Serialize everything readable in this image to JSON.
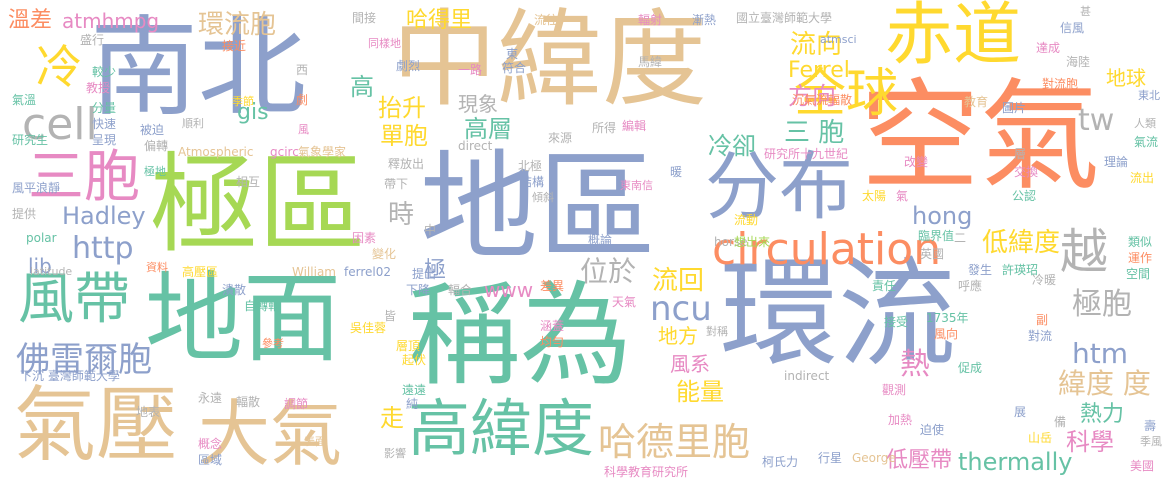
{
  "cloud": {
    "palette": {
      "green": "#66c2a5",
      "orange": "#fc8d62",
      "blue": "#8da0cb",
      "pink": "#e78ac3",
      "lime": "#a6d854",
      "yellow": "#ffd92f",
      "tan": "#e5c494",
      "gray": "#b3b3b3"
    },
    "words": [
      {
        "text": "環流",
        "color": "#8da0cb"
      },
      {
        "text": "地區",
        "color": "#8da0cb"
      },
      {
        "text": "空氣",
        "color": "#fc8d62"
      },
      {
        "text": "中緯度",
        "color": "#e5c494"
      },
      {
        "text": "南北",
        "color": "#8da0cb"
      },
      {
        "text": "地面",
        "color": "#66c2a5"
      },
      {
        "text": "稱為",
        "color": "#66c2a5"
      },
      {
        "text": "極區",
        "color": "#a6d854"
      },
      {
        "text": "赤道",
        "color": "#ffd92f"
      },
      {
        "text": "氣壓",
        "color": "#e5c494"
      },
      {
        "text": "大氣",
        "color": "#e5c494"
      },
      {
        "text": "分布",
        "color": "#8da0cb"
      },
      {
        "text": "高緯度",
        "color": "#66c2a5"
      },
      {
        "text": "circulation",
        "color": "#fc8d62"
      },
      {
        "text": "風帶",
        "color": "#66c2a5"
      },
      {
        "text": "全球",
        "color": "#ffd92f"
      },
      {
        "text": "三胞",
        "color": "#e78ac3"
      },
      {
        "text": "哈德里胞",
        "color": "#e5c494"
      },
      {
        "text": "越",
        "color": "#b3b3b3"
      },
      {
        "text": "冷",
        "color": "#ffd92f"
      },
      {
        "text": "cell",
        "color": "#b3b3b3"
      },
      {
        "text": "佛雷爾胞",
        "color": "#8da0cb"
      },
      {
        "text": "http",
        "color": "#8da0cb"
      },
      {
        "text": "ncu",
        "color": "#8da0cb"
      },
      {
        "text": "Hadley",
        "color": "#8da0cb"
      },
      {
        "text": "環流胞",
        "color": "#e5c494"
      },
      {
        "text": "哈得里",
        "color": "#ffd92f"
      },
      {
        "text": "流向",
        "color": "#ffd92f"
      },
      {
        "text": "Ferrel",
        "color": "#ffd92f"
      },
      {
        "text": "方向",
        "color": "#e78ac3"
      },
      {
        "text": "tw",
        "color": "#b3b3b3"
      },
      {
        "text": "地球",
        "color": "#ffd92f"
      },
      {
        "text": "三 胞",
        "color": "#66c2a5"
      },
      {
        "text": "高層",
        "color": "#66c2a5"
      },
      {
        "text": "抬升",
        "color": "#ffd92f"
      },
      {
        "text": "單胞",
        "color": "#ffd92f"
      },
      {
        "text": "冷卻",
        "color": "#66c2a5"
      },
      {
        "text": "低緯度",
        "color": "#ffd92f"
      },
      {
        "text": "hong",
        "color": "#8da0cb"
      },
      {
        "text": "極胞",
        "color": "#b3b3b3"
      },
      {
        "text": "htm",
        "color": "#8da0cb"
      },
      {
        "text": "緯度 度",
        "color": "#e5c494"
      },
      {
        "text": "熱力",
        "color": "#66c2a5"
      },
      {
        "text": "科學",
        "color": "#e78ac3"
      },
      {
        "text": "thermally",
        "color": "#66c2a5"
      },
      {
        "text": "低壓帶",
        "color": "#e78ac3"
      },
      {
        "text": "能量",
        "color": "#ffd92f"
      },
      {
        "text": "風系",
        "color": "#e78ac3"
      },
      {
        "text": "熱",
        "color": "#e78ac3"
      },
      {
        "text": "流回",
        "color": "#ffd92f"
      },
      {
        "text": "位於",
        "color": "#b3b3b3"
      },
      {
        "text": "www",
        "color": "#e78ac3"
      },
      {
        "text": "地方",
        "color": "#ffd92f"
      },
      {
        "text": "時",
        "color": "#b3b3b3"
      },
      {
        "text": "高",
        "color": "#66c2a5"
      },
      {
        "text": "gis",
        "color": "#66c2a5"
      },
      {
        "text": "lib",
        "color": "#8da0cb"
      },
      {
        "text": "溫差",
        "color": "#fc8d62"
      },
      {
        "text": "atmhmpg",
        "color": "#e78ac3"
      },
      {
        "text": "現象",
        "color": "#b3b3b3"
      },
      {
        "text": "走",
        "color": "#ffd92f"
      },
      {
        "text": "極",
        "color": "#8da0cb"
      },
      {
        "text": "Atmospheric",
        "color": "#e5c494"
      },
      {
        "text": "gcirc",
        "color": "#e78ac3"
      },
      {
        "text": "研究所十九世紀",
        "color": "#e78ac3"
      },
      {
        "text": "沉氣流輻散",
        "color": "#fc8d62"
      },
      {
        "text": "科學教育研究所",
        "color": "#e78ac3"
      },
      {
        "text": "下沉 臺灣師範大學",
        "color": "#8da0cb"
      },
      {
        "text": "國立臺灣師範大學",
        "color": "#b3b3b3"
      },
      {
        "text": "William",
        "color": "#e5c494"
      },
      {
        "text": "ferrel02",
        "color": "#8da0cb"
      },
      {
        "text": "indirect",
        "color": "#b3b3b3"
      },
      {
        "text": "George",
        "color": "#e5c494"
      },
      {
        "text": "direct",
        "color": "#b3b3b3"
      },
      {
        "text": "horse",
        "color": "#b3b3b3"
      },
      {
        "text": "polar",
        "color": "#66c2a5"
      },
      {
        "text": "latitude",
        "color": "#b3b3b3"
      },
      {
        "text": "atmsci",
        "color": "#8da0cb"
      },
      {
        "text": "1735年",
        "color": "#66c2a5"
      },
      {
        "text": "許瑛玿",
        "color": "#66c2a5"
      },
      {
        "text": "吳佳蓉",
        "color": "#ffd92f"
      },
      {
        "text": "柯氏力",
        "color": "#8da0cb"
      },
      {
        "text": "東南信",
        "color": "#e78ac3"
      },
      {
        "text": "想出來",
        "color": "#a6d854"
      },
      {
        "text": "太陽",
        "color": "#ffd92f"
      },
      {
        "text": "氣",
        "color": "#e78ac3"
      },
      {
        "text": "公認",
        "color": "#66c2a5"
      },
      {
        "text": "臨界值",
        "color": "#66c2a5"
      },
      {
        "text": "運作",
        "color": "#fc8d62"
      },
      {
        "text": "空間",
        "color": "#66c2a5"
      },
      {
        "text": "類似",
        "color": "#66c2a5"
      },
      {
        "text": "發生",
        "color": "#8da0cb"
      },
      {
        "text": "英國",
        "color": "#b3b3b3"
      },
      {
        "text": "二",
        "color": "#b3b3b3"
      },
      {
        "text": "呼應",
        "color": "#b3b3b3"
      },
      {
        "text": "冷暖",
        "color": "#b3b3b3"
      },
      {
        "text": "責任",
        "color": "#66c2a5"
      },
      {
        "text": "接受",
        "color": "#66c2a5"
      },
      {
        "text": "風向",
        "color": "#fc8d62"
      },
      {
        "text": "對流",
        "color": "#8da0cb"
      },
      {
        "text": "副",
        "color": "#fc8d62"
      },
      {
        "text": "促成",
        "color": "#66c2a5"
      },
      {
        "text": "觀測",
        "color": "#e78ac3"
      },
      {
        "text": "加熱",
        "color": "#e78ac3"
      },
      {
        "text": "迫使",
        "color": "#8da0cb"
      },
      {
        "text": "行星",
        "color": "#8da0cb"
      },
      {
        "text": "山岳",
        "color": "#ffd92f"
      },
      {
        "text": "展",
        "color": "#8da0cb"
      },
      {
        "text": "季風",
        "color": "#b3b3b3"
      },
      {
        "text": "美國",
        "color": "#e78ac3"
      },
      {
        "text": "壽",
        "color": "#8da0cb"
      },
      {
        "text": "備",
        "color": "#b3b3b3"
      },
      {
        "text": "漸熱",
        "color": "#8da0cb"
      },
      {
        "text": "輻射",
        "color": "#e78ac3"
      },
      {
        "text": "信風",
        "color": "#8da0cb"
      },
      {
        "text": "達成",
        "color": "#e78ac3"
      },
      {
        "text": "對流胞",
        "color": "#fc8d62"
      },
      {
        "text": "東北",
        "color": "#8da0cb"
      },
      {
        "text": "人類",
        "color": "#b3b3b3"
      },
      {
        "text": "氣流",
        "color": "#66c2a5"
      },
      {
        "text": "理論",
        "color": "#8da0cb"
      },
      {
        "text": "流出",
        "color": "#ffd92f"
      },
      {
        "text": "交換",
        "color": "#e78ac3"
      },
      {
        "text": "圖片",
        "color": "#8da0cb"
      },
      {
        "text": "教育",
        "color": "#e5c494"
      },
      {
        "text": "改變",
        "color": "#e78ac3"
      },
      {
        "text": "層",
        "color": "#b3b3b3"
      },
      {
        "text": "甚",
        "color": "#b3b3b3"
      },
      {
        "text": "海陸",
        "color": "#b3b3b3"
      },
      {
        "text": "流往",
        "color": "#e5c494"
      },
      {
        "text": "東",
        "color": "#8da0cb"
      },
      {
        "text": "符合",
        "color": "#8da0cb"
      },
      {
        "text": "一路",
        "color": "#e78ac3"
      },
      {
        "text": "馬緯",
        "color": "#b3b3b3"
      },
      {
        "text": "間接",
        "color": "#b3b3b3"
      },
      {
        "text": "同樣地",
        "color": "#e78ac3"
      },
      {
        "text": "西",
        "color": "#b3b3b3"
      },
      {
        "text": "劇烈",
        "color": "#8da0cb"
      },
      {
        "text": "季節",
        "color": "#ffd92f"
      },
      {
        "text": "劇",
        "color": "#fc8d62"
      },
      {
        "text": "風",
        "color": "#e78ac3"
      },
      {
        "text": "接近",
        "color": "#fc8d62"
      },
      {
        "text": "較少",
        "color": "#66c2a5"
      },
      {
        "text": "盛行",
        "color": "#b3b3b3"
      },
      {
        "text": "教授",
        "color": "#e78ac3"
      },
      {
        "text": "氣溫",
        "color": "#66c2a5"
      },
      {
        "text": "分量",
        "color": "#66c2a5"
      },
      {
        "text": "快速",
        "color": "#8da0cb"
      },
      {
        "text": "被迫",
        "color": "#8da0cb"
      },
      {
        "text": "順利",
        "color": "#b3b3b3"
      },
      {
        "text": "呈現",
        "color": "#8da0cb"
      },
      {
        "text": "研究生",
        "color": "#66c2a5"
      },
      {
        "text": "偏轉",
        "color": "#b3b3b3"
      },
      {
        "text": "氣象學家",
        "color": "#e5c494"
      },
      {
        "text": "極地",
        "color": "#66c2a5"
      },
      {
        "text": "風平浪靜",
        "color": "#8da0cb"
      },
      {
        "text": "提供",
        "color": "#b3b3b3"
      },
      {
        "text": "相互",
        "color": "#b3b3b3"
      },
      {
        "text": "釋放出",
        "color": "#b3b3b3"
      },
      {
        "text": "帶下",
        "color": "#b3b3b3"
      },
      {
        "text": "北極",
        "color": "#b3b3b3"
      },
      {
        "text": "結構",
        "color": "#8da0cb"
      },
      {
        "text": "來源",
        "color": "#b3b3b3"
      },
      {
        "text": "所得",
        "color": "#b3b3b3"
      },
      {
        "text": "編輯",
        "color": "#e78ac3"
      },
      {
        "text": "暖",
        "color": "#8da0cb"
      },
      {
        "text": "傾斜",
        "color": "#b3b3b3"
      },
      {
        "text": "概論",
        "color": "#8da0cb"
      },
      {
        "text": "流動",
        "color": "#ffd92f"
      },
      {
        "text": "因素",
        "color": "#e78ac3"
      },
      {
        "text": "中",
        "color": "#b3b3b3"
      },
      {
        "text": "變化",
        "color": "#e5c494"
      },
      {
        "text": "高壓區",
        "color": "#ffd92f"
      },
      {
        "text": "潰散",
        "color": "#8da0cb"
      },
      {
        "text": "自轉軸",
        "color": "#66c2a5"
      },
      {
        "text": "提出",
        "color": "#8da0cb"
      },
      {
        "text": "下降",
        "color": "#8da0cb"
      },
      {
        "text": "輻合",
        "color": "#b3b3b3"
      },
      {
        "text": "差異",
        "color": "#fc8d62"
      },
      {
        "text": "天氣",
        "color": "#e78ac3"
      },
      {
        "text": "涵蓋",
        "color": "#e78ac3"
      },
      {
        "text": "均勻",
        "color": "#fc8d62"
      },
      {
        "text": "對稱",
        "color": "#b3b3b3"
      },
      {
        "text": "層頂",
        "color": "#ffd92f"
      },
      {
        "text": "起伏",
        "color": "#ffd92f"
      },
      {
        "text": "遠遠",
        "color": "#66c2a5"
      },
      {
        "text": "純",
        "color": "#8da0cb"
      },
      {
        "text": "影響",
        "color": "#b3b3b3"
      },
      {
        "text": "表面",
        "color": "#e5c494"
      },
      {
        "text": "調節",
        "color": "#e78ac3"
      },
      {
        "text": "輻散",
        "color": "#b3b3b3"
      },
      {
        "text": "永遠",
        "color": "#b3b3b3"
      },
      {
        "text": "地表",
        "color": "#b3b3b3"
      },
      {
        "text": "參考",
        "color": "#fc8d62"
      },
      {
        "text": "概念",
        "color": "#e78ac3"
      },
      {
        "text": "區域",
        "color": "#8da0cb"
      },
      {
        "text": "資料",
        "color": "#fc8d62"
      },
      {
        "text": "皆",
        "color": "#b3b3b3"
      }
    ]
  }
}
